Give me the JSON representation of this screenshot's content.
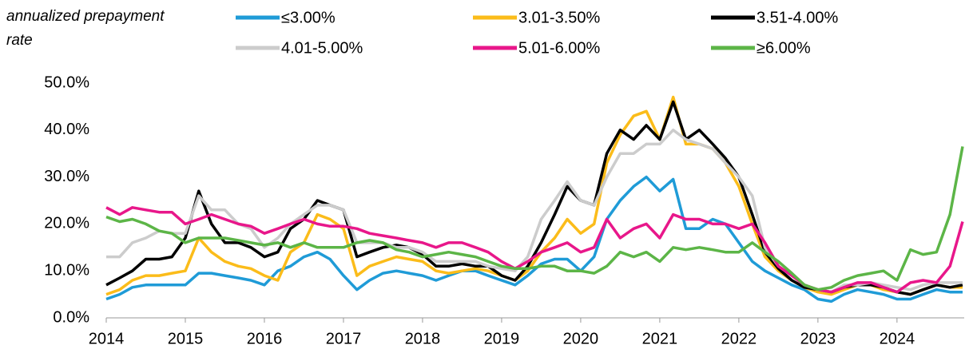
{
  "chart_data": {
    "type": "line",
    "ylabel": "annualized prepayment rate",
    "x": [
      2014,
      2014.17,
      2014.33,
      2014.5,
      2014.67,
      2014.83,
      2015,
      2015.17,
      2015.33,
      2015.5,
      2015.67,
      2015.83,
      2016,
      2016.17,
      2016.33,
      2016.5,
      2016.67,
      2016.83,
      2017,
      2017.17,
      2017.33,
      2017.5,
      2017.67,
      2017.83,
      2018,
      2018.17,
      2018.33,
      2018.5,
      2018.67,
      2018.83,
      2019,
      2019.17,
      2019.33,
      2019.5,
      2019.67,
      2019.83,
      2020,
      2020.17,
      2020.33,
      2020.5,
      2020.67,
      2020.83,
      2021,
      2021.17,
      2021.33,
      2021.5,
      2021.67,
      2021.83,
      2022,
      2022.17,
      2022.33,
      2022.5,
      2022.67,
      2022.83,
      2023,
      2023.17,
      2023.33,
      2023.5,
      2023.67,
      2023.83,
      2024,
      2024.17,
      2024.33,
      2024.5,
      2024.67,
      2024.83
    ],
    "series": [
      {
        "name": "≤3.00%",
        "color": "#1f9bd7",
        "values": [
          4,
          5,
          6.5,
          7,
          7,
          7,
          7,
          9.5,
          9.5,
          9,
          8.5,
          8,
          7,
          10,
          11,
          13,
          14,
          12.5,
          9,
          6,
          8,
          9.5,
          10,
          9.5,
          9,
          8,
          9,
          10,
          10,
          9,
          8,
          7,
          9,
          11.5,
          12.5,
          12.5,
          10,
          13,
          21,
          25,
          28,
          30,
          27,
          29.5,
          19,
          19,
          21,
          20,
          16,
          12,
          10,
          8.5,
          7,
          6,
          4,
          3.5,
          5,
          6,
          5.5,
          5,
          4,
          4,
          5,
          6,
          5.5,
          5.5
        ]
      },
      {
        "name": "3.01-3.50%",
        "color": "#fbbc1a",
        "values": [
          5,
          6,
          8,
          9,
          9,
          9.5,
          10,
          17,
          14,
          12,
          11,
          10.5,
          9,
          8,
          14,
          16,
          22,
          21,
          19,
          9,
          11,
          12,
          13,
          12.5,
          12,
          10,
          9.5,
          10,
          10.5,
          10,
          9,
          8,
          10,
          14,
          17,
          21,
          18,
          20,
          33,
          39,
          43,
          44,
          38,
          47,
          37,
          37,
          36,
          33,
          28,
          20,
          13,
          10,
          8,
          6.5,
          5.5,
          5,
          6,
          7,
          7,
          6,
          5.5,
          5,
          6,
          7,
          6.5,
          6.5
        ]
      },
      {
        "name": "3.51-4.00%",
        "color": "#000000",
        "values": [
          7,
          8.5,
          10,
          12.5,
          12.5,
          13,
          17,
          27,
          20,
          16,
          16,
          15,
          13,
          14,
          19,
          21,
          25,
          24,
          23,
          13,
          14,
          15,
          15.5,
          15,
          13.5,
          11,
          11,
          11.5,
          11,
          11,
          9,
          8,
          11,
          16,
          22,
          28,
          25,
          24,
          35,
          40,
          38,
          41,
          38,
          46,
          38,
          40,
          37,
          34,
          30,
          22,
          14,
          10.5,
          8,
          6.5,
          6,
          5.5,
          6.5,
          7,
          7,
          6.5,
          5.5,
          5,
          6,
          7,
          6.5,
          7
        ]
      },
      {
        "name": "4.01-5.00%",
        "color": "#cccccc",
        "values": [
          13,
          13,
          16,
          17,
          18.5,
          18,
          18,
          26,
          23,
          23,
          20,
          19,
          15,
          17,
          20,
          22,
          24,
          24,
          23,
          16,
          16,
          16,
          15,
          15,
          14,
          12,
          12,
          12,
          12,
          11,
          10.5,
          10,
          13,
          21,
          25,
          29,
          25,
          24,
          30,
          35,
          35,
          37,
          37,
          40,
          38,
          37,
          36,
          33,
          30,
          26,
          15,
          11,
          9,
          7,
          6,
          5.5,
          7,
          7,
          7.5,
          7,
          6.5,
          6,
          7,
          7.5,
          7.5,
          7.5
        ]
      },
      {
        "name": "5.01-6.00%",
        "color": "#e8178a",
        "values": [
          23.5,
          22,
          23.5,
          23,
          22.5,
          22.5,
          20,
          21,
          22,
          21,
          20,
          19.5,
          18,
          19,
          20,
          21,
          20,
          19.5,
          19.5,
          19,
          18,
          17.5,
          17,
          16.5,
          16,
          15,
          16,
          16,
          15,
          14,
          12,
          10.5,
          12,
          14,
          15,
          16,
          14,
          15,
          21,
          17,
          19,
          20,
          17,
          22,
          21,
          21,
          20,
          20,
          19,
          20,
          16,
          11,
          9,
          7,
          6,
          5.5,
          6.5,
          7.5,
          7.5,
          6.5,
          5.5,
          7.5,
          8,
          7.5,
          11,
          20.5
        ]
      },
      {
        "name": "≥6.00%",
        "color": "#5cb547",
        "values": [
          21.5,
          20.5,
          21,
          20,
          18.5,
          18,
          16,
          17,
          17,
          17,
          16.5,
          16,
          15.5,
          16,
          15,
          16,
          15,
          15,
          15,
          16,
          16.5,
          16,
          14.5,
          14,
          13,
          13.5,
          14,
          13.5,
          13,
          12,
          11,
          10.5,
          10.5,
          11,
          11,
          10,
          10,
          9.5,
          11,
          14,
          13,
          14,
          12,
          15,
          14.5,
          15,
          14.5,
          14,
          14,
          16,
          14,
          12,
          9.5,
          7,
          6,
          6.5,
          8,
          9,
          9.5,
          10,
          8,
          14.5,
          13.5,
          14,
          22,
          36.5
        ]
      }
    ],
    "xlim": [
      2014,
      2024.85
    ],
    "xticks": [
      2014,
      2015,
      2016,
      2017,
      2018,
      2019,
      2020,
      2021,
      2022,
      2023,
      2024
    ],
    "ylim": [
      0,
      50
    ],
    "yticks": [
      {
        "value": 0,
        "label": "0.0%"
      },
      {
        "value": 10,
        "label": "10.0%"
      },
      {
        "value": 20,
        "label": "20.0%"
      },
      {
        "value": 30,
        "label": "30.0%"
      },
      {
        "value": 40,
        "label": "40.0%"
      },
      {
        "value": 50,
        "label": "50.0%"
      }
    ],
    "grid": false,
    "legend": "top"
  }
}
